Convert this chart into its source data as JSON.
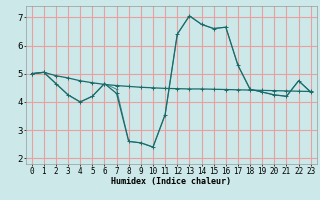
{
  "xlabel": "Humidex (Indice chaleur)",
  "background_color": "#cce8e8",
  "grid_color": "#e8a0a0",
  "line_color": "#1a6b6b",
  "xlim": [
    -0.5,
    23.5
  ],
  "ylim": [
    1.8,
    7.4
  ],
  "xticks": [
    0,
    1,
    2,
    3,
    4,
    5,
    6,
    7,
    8,
    9,
    10,
    11,
    12,
    13,
    14,
    15,
    16,
    17,
    18,
    19,
    20,
    21,
    22,
    23
  ],
  "yticks": [
    2,
    3,
    4,
    5,
    6,
    7
  ],
  "series1_y": [
    5.0,
    5.05,
    4.93,
    4.85,
    4.75,
    4.68,
    4.62,
    4.58,
    4.55,
    4.52,
    4.5,
    4.48,
    4.47,
    4.46,
    4.46,
    4.45,
    4.44,
    4.43,
    4.42,
    4.41,
    4.4,
    4.39,
    4.38,
    4.37
  ],
  "series2_y": [
    5.0,
    5.05,
    4.65,
    4.25,
    4.0,
    4.2,
    4.65,
    4.3,
    2.6,
    2.55,
    2.4,
    3.55,
    6.4,
    7.05,
    6.75,
    6.6,
    6.65,
    5.3,
    4.45,
    4.35,
    4.25,
    4.2,
    4.75,
    4.35
  ],
  "series3_y": [
    5.0,
    5.05,
    4.65,
    4.25,
    4.0,
    4.2,
    4.65,
    4.45,
    2.6,
    2.55,
    2.4,
    3.55,
    6.4,
    7.05,
    6.75,
    6.6,
    6.65,
    5.3,
    4.45,
    4.35,
    4.25,
    4.2,
    4.75,
    4.35
  ],
  "xlabel_fontsize": 6.0,
  "tick_fontsize": 5.5,
  "ytick_fontsize": 6.5
}
